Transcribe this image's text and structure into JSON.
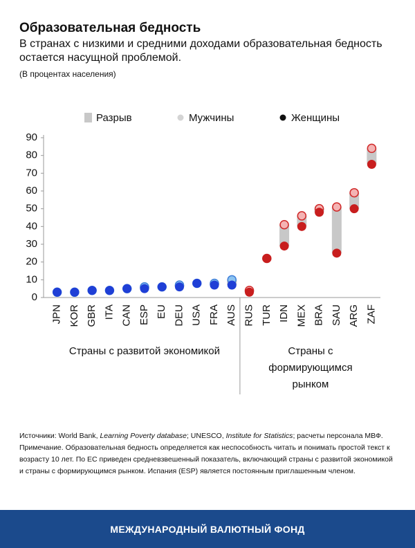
{
  "chart_data": {
    "type": "dot-range",
    "title": "Образовательная бедность",
    "subtitle": "В странах с низкими и средними доходами образовательная бедность остается насущной проблемой.",
    "unit_note": "(В процентах населения)",
    "categories": [
      "JPN",
      "KOR",
      "GBR",
      "ITA",
      "CAN",
      "ESP",
      "EU",
      "DEU",
      "USA",
      "FRA",
      "AUS",
      "RUS",
      "TUR",
      "IDN",
      "MEX",
      "BRA",
      "SAU",
      "ARG",
      "ZAF"
    ],
    "series": [
      {
        "name": "Разрыв",
        "color": "#c8c8c8",
        "values": [
          0,
          0,
          0,
          0,
          0,
          1,
          0,
          1,
          0,
          1,
          3,
          1,
          0,
          12,
          6,
          2,
          26,
          9,
          9
        ]
      },
      {
        "name": "Мужчины",
        "color": "#d4d4d4",
        "values": [
          3,
          3,
          4,
          4,
          5,
          6,
          6,
          7,
          8,
          8,
          10,
          4,
          22,
          41,
          46,
          50,
          51,
          59,
          84
        ]
      },
      {
        "name": "Женщины",
        "color": "#111111",
        "values": [
          3,
          3,
          4,
          4,
          5,
          5,
          6,
          6,
          8,
          7,
          7,
          3,
          22,
          29,
          40,
          48,
          25,
          50,
          75
        ]
      }
    ],
    "groups": [
      {
        "label": "Страны с развитой экономикой",
        "start": 0,
        "end": 10,
        "women_color": "#1f3fd6",
        "men_color": "#8cc3f0",
        "men_stroke": "#3f7fd9"
      },
      {
        "label": "Страны с формирующимся рынком",
        "start": 11,
        "end": 18,
        "women_color": "#c81e1e",
        "men_color": "#f4b3b3",
        "men_stroke": "#d02a2a"
      }
    ],
    "ylim": [
      0,
      90
    ],
    "yticks": [
      0,
      10,
      20,
      30,
      40,
      50,
      60,
      70,
      80,
      90
    ]
  },
  "sources": [
    "Источники: World Bank, ",
    "Learning Poverty database",
    "; UNESCO, ",
    "Institute for Statistics",
    "; расчеты персонала МВФ."
  ],
  "note": "Примечание. Образовательная бедность определяется как неспособность читать и понимать простой текст к возрасту 10 лет. По ЕС приведен средневзвешенный показатель, включающий страны с развитой экономикой и страны с формирующимся рынком. Испания (ESP) является постоянным приглашенным членом.",
  "footer": "МЕЖДУНАРОДНЫЙ ВАЛЮТНЫЙ ФОНД"
}
